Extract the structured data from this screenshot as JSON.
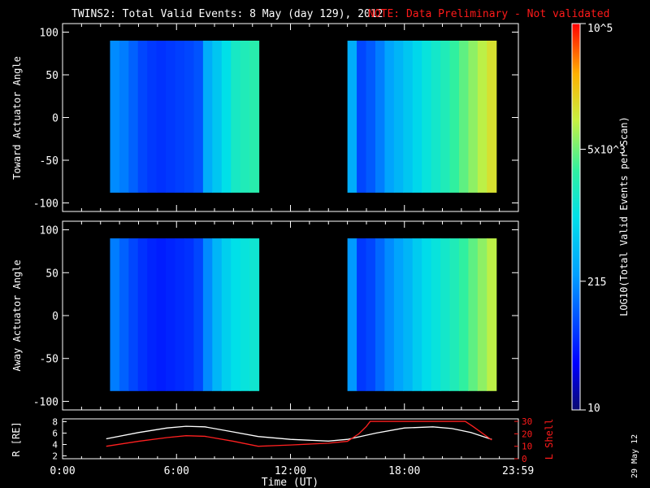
{
  "header": {
    "title": "TWINS2: Total Valid Events:  8 May (day 129), 2012",
    "note": "NOTE: Data Preliminary - Not validated",
    "note_color": "#ff1a1a"
  },
  "side_date": "29 May 12",
  "chart_data": [
    {
      "type": "heatmap",
      "ylabel": "Toward Actuator Angle",
      "ylim": [
        -110,
        110
      ],
      "y_ticks": [
        "100",
        "50",
        "0",
        "-50",
        "-100"
      ],
      "data_blocks": [
        {
          "x_start": "02:30",
          "x_end": "10:20",
          "y_range": [
            -88,
            90
          ],
          "level_profile": [
            0.32,
            0.3,
            0.26,
            0.22,
            0.2,
            0.19,
            0.2,
            0.21,
            0.22,
            0.24,
            0.38,
            0.44,
            0.5,
            0.56,
            0.58,
            0.6
          ]
        },
        {
          "x_start": "15:00",
          "x_end": "22:50",
          "y_range": [
            -88,
            90
          ],
          "level_profile": [
            0.38,
            0.22,
            0.25,
            0.3,
            0.36,
            0.4,
            0.44,
            0.48,
            0.52,
            0.55,
            0.58,
            0.62,
            0.66,
            0.7,
            0.74,
            0.78
          ]
        }
      ]
    },
    {
      "type": "heatmap",
      "ylabel": "Away Actuator Angle",
      "ylim": [
        -110,
        110
      ],
      "y_ticks": [
        "100",
        "50",
        "0",
        "-50",
        "-100"
      ],
      "data_blocks": [
        {
          "x_start": "02:30",
          "x_end": "10:20",
          "y_range": [
            -88,
            90
          ],
          "level_profile": [
            0.3,
            0.26,
            0.22,
            0.19,
            0.17,
            0.16,
            0.17,
            0.18,
            0.19,
            0.22,
            0.32,
            0.4,
            0.46,
            0.5,
            0.52,
            0.54
          ]
        },
        {
          "x_start": "15:00",
          "x_end": "22:50",
          "y_range": [
            -88,
            90
          ],
          "level_profile": [
            0.34,
            0.2,
            0.22,
            0.27,
            0.32,
            0.36,
            0.4,
            0.45,
            0.49,
            0.52,
            0.55,
            0.58,
            0.62,
            0.66,
            0.7,
            0.74
          ]
        }
      ]
    },
    {
      "type": "line",
      "ylabel_left": "R [RE]",
      "ylabel_right": "L Shell",
      "y_left_ticks": [
        "8",
        "6",
        "4",
        "2"
      ],
      "y_right_ticks": [
        "30",
        "20",
        "10",
        "0"
      ],
      "ylim_left": [
        1.5,
        8.5
      ],
      "ylim_right": [
        0,
        32
      ],
      "x_ticks": [
        "0:00",
        "6:00",
        "12:00",
        "18:00",
        "23:59"
      ],
      "xlabel": "Time (UT)",
      "series": [
        {
          "color": "#ffffff",
          "axis": "left",
          "x_hours": [
            2.3,
            4,
            5.5,
            6.5,
            7.5,
            9,
            10.3,
            12,
            14,
            15,
            16.5,
            18,
            19.5,
            20.5,
            21.5,
            22.6
          ],
          "values": [
            5.0,
            6.1,
            6.9,
            7.2,
            7.1,
            6.2,
            5.4,
            4.9,
            4.6,
            4.9,
            6.0,
            6.9,
            7.1,
            6.8,
            6.1,
            4.9
          ]
        },
        {
          "color": "#ff2020",
          "axis": "right",
          "x_hours": [
            2.3,
            4,
            5.5,
            6.5,
            7.5,
            9,
            10.3,
            12,
            14,
            15,
            15.6,
            16,
            16.2,
            21.2,
            21.6,
            22.6
          ],
          "values": [
            10,
            14,
            17,
            18.5,
            18,
            14,
            10,
            11,
            12.5,
            14,
            20,
            26,
            30,
            30,
            26,
            15
          ]
        }
      ]
    },
    {
      "type": "heatmap",
      "colorbar": true,
      "label": "LOG10(Total Valid Events per Scan)",
      "tick_labels": [
        "10",
        "215",
        "5x10^3",
        "10^5"
      ],
      "range": [
        10,
        100000
      ]
    }
  ]
}
